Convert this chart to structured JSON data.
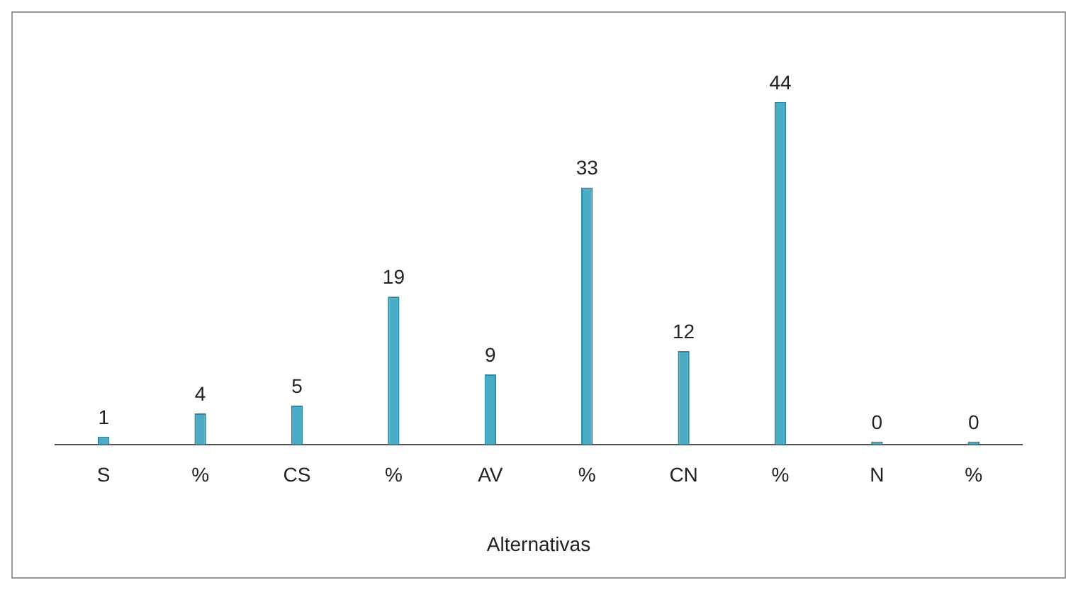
{
  "chart_data": {
    "type": "bar",
    "xlabel": "Alternativas",
    "categories": [
      "S",
      "%",
      "CS",
      "%",
      "AV",
      "%",
      "CN",
      "%",
      "N",
      "%"
    ],
    "values": [
      1,
      4,
      5,
      19,
      9,
      33,
      12,
      44,
      0,
      0
    ],
    "color": "#4bacc6",
    "data_labels": true,
    "grid": false,
    "legend": false
  }
}
